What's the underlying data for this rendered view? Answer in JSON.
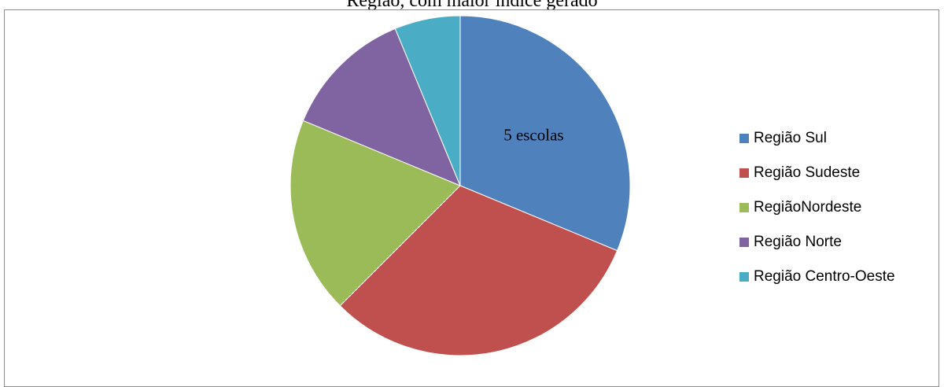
{
  "title_fragment": "Região, com maior índice gerado",
  "chart_data": {
    "type": "pie",
    "categories": [
      "Região Sul",
      "Região Sudeste",
      "RegiãoNordeste",
      "Região Norte",
      "Região Centro-Oeste"
    ],
    "values": [
      5,
      5,
      3,
      2,
      1
    ],
    "colors": [
      "#4F81BD",
      "#C0504D",
      "#9BBB59",
      "#8064A2",
      "#4BACC6"
    ],
    "data_labels": [
      "5 escolas",
      "",
      "",
      "",
      ""
    ],
    "legend_position": "right",
    "start_angle_deg": 0,
    "direction": "clockwise"
  }
}
